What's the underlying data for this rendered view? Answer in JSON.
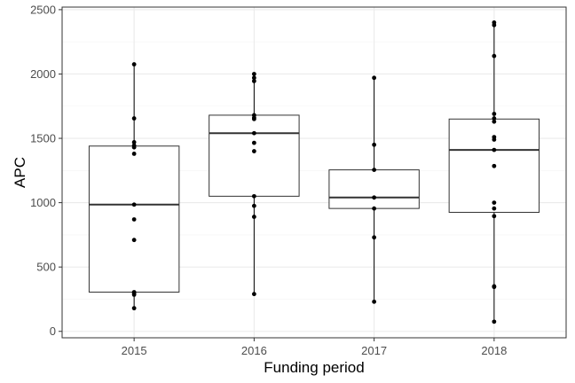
{
  "chart_data": {
    "type": "boxplot",
    "xlabel": "Funding period",
    "ylabel": "APC",
    "ylim": [
      -50,
      2520
    ],
    "y_ticks": [
      0,
      500,
      1000,
      1500,
      2000,
      2500
    ],
    "y_tick_labels": [
      "0",
      "500",
      "1000",
      "1500",
      "2000",
      "2500"
    ],
    "categories": [
      "2015",
      "2016",
      "2017",
      "2018"
    ],
    "grid": true,
    "boxes": [
      {
        "category": "2015",
        "q1": 305,
        "median": 985,
        "q3": 1440,
        "whisker_low": 180,
        "whisker_high": 2075,
        "points": [
          2075,
          1655,
          1470,
          1445,
          1430,
          1380,
          985,
          870,
          710,
          305,
          295,
          285,
          180
        ]
      },
      {
        "category": "2016",
        "q1": 1050,
        "median": 1540,
        "q3": 1680,
        "whisker_low": 290,
        "whisker_high": 2000,
        "points": [
          2000,
          1970,
          1945,
          1680,
          1660,
          1650,
          1540,
          1465,
          1400,
          1050,
          975,
          890,
          290
        ]
      },
      {
        "category": "2017",
        "q1": 955,
        "median": 1040,
        "q3": 1255,
        "whisker_low": 230,
        "whisker_high": 1970,
        "points": [
          1970,
          1450,
          1255,
          1040,
          955,
          730,
          230
        ]
      },
      {
        "category": "2018",
        "q1": 925,
        "median": 1410,
        "q3": 1650,
        "whisker_low": 75,
        "whisker_high": 2400,
        "points": [
          2400,
          2380,
          2140,
          1690,
          1655,
          1630,
          1510,
          1490,
          1410,
          1285,
          1000,
          955,
          895,
          350,
          345,
          75
        ]
      }
    ]
  }
}
